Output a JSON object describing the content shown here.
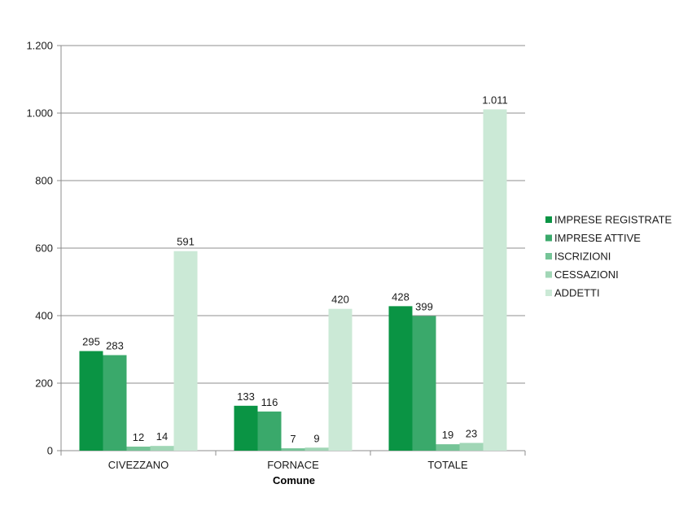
{
  "chart_data": {
    "type": "bar",
    "title": "",
    "xlabel": "Comune",
    "ylabel": "",
    "ylim": [
      0,
      1200
    ],
    "yticks": [
      0,
      200,
      400,
      600,
      800,
      1000,
      1200
    ],
    "ytick_labels": [
      "0",
      "200",
      "400",
      "600",
      "800",
      "1.000",
      "1.200"
    ],
    "grid": "horizontal",
    "legend_position": "right",
    "categories": [
      "CIVEZZANO",
      "FORNACE",
      "TOTALE"
    ],
    "series": [
      {
        "name": "IMPRESE REGISTRATE",
        "color": "#0a9444",
        "values": [
          295,
          133,
          428
        ],
        "labels": [
          "295",
          "133",
          "428"
        ]
      },
      {
        "name": "IMPRESE ATTIVE",
        "color": "#3aa96b",
        "values": [
          283,
          116,
          399
        ],
        "labels": [
          "283",
          "116",
          "399"
        ]
      },
      {
        "name": "ISCRIZIONI",
        "color": "#75c497",
        "values": [
          12,
          7,
          19
        ],
        "labels": [
          "12",
          "7",
          "19"
        ]
      },
      {
        "name": "CESSAZIONI",
        "color": "#a1d6b6",
        "values": [
          14,
          9,
          23
        ],
        "labels": [
          "14",
          "9",
          "23"
        ]
      },
      {
        "name": "ADDETTI",
        "color": "#cbe9d6",
        "values": [
          591,
          420,
          1011
        ],
        "labels": [
          "591",
          "420",
          "1.011"
        ]
      }
    ]
  }
}
